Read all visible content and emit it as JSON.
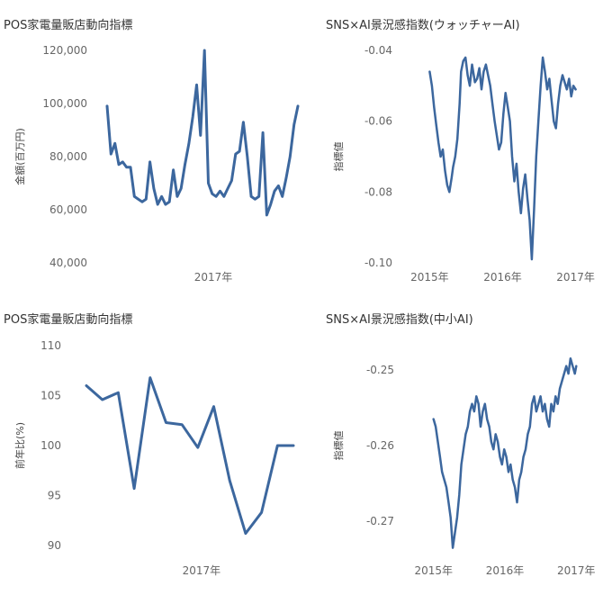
{
  "chart_data": [
    {
      "type": "line",
      "title": "POS家電量販店動向指標",
      "ylabel": "金額(百万円)",
      "xlabel": "",
      "ylim": [
        40000,
        120000
      ],
      "yticks": [
        "120,000",
        "100,000",
        "80,000",
        "60,000",
        "40,000"
      ],
      "ytick_values": [
        120000,
        100000,
        80000,
        60000,
        40000
      ],
      "xticks": [
        "2017年"
      ],
      "grid": false,
      "series": [
        {
          "values": [
            99000,
            81000,
            85000,
            77000,
            78000,
            76000,
            76000,
            65000,
            64000,
            63000,
            64000,
            78000,
            68000,
            62000,
            65000,
            62000,
            63000,
            75000,
            65000,
            68000,
            77000,
            85000,
            95000,
            107000,
            88000,
            120000,
            70000,
            66000,
            65000,
            67000,
            65000,
            68000,
            71000,
            81000,
            82000,
            93000,
            80000,
            65000,
            64000,
            65000,
            89000,
            58000,
            62000,
            67000,
            69000,
            65000,
            72000,
            80000,
            92000,
            99000
          ]
        }
      ]
    },
    {
      "type": "line",
      "title": "SNS×AI景況感指数(ウォッチャーAI)",
      "ylabel": "指標値",
      "xlabel": "",
      "ylim": [
        -0.1,
        -0.04
      ],
      "yticks": [
        "-0.04",
        "-0.06",
        "-0.08",
        "-0.10"
      ],
      "ytick_values": [
        -0.04,
        -0.06,
        -0.08,
        -0.1
      ],
      "xticks": [
        "2015年",
        "2016年",
        "2017年"
      ],
      "grid": false,
      "series": [
        {
          "x": [
            0,
            0.03,
            0.06,
            0.09,
            0.12,
            0.15,
            0.18,
            0.21,
            0.24,
            0.27,
            0.3,
            0.32,
            0.35,
            0.38,
            0.41,
            0.43,
            0.46,
            0.49,
            0.52,
            0.55,
            0.58,
            0.62,
            0.65,
            0.68,
            0.71,
            0.74,
            0.77,
            0.8,
            0.83,
            0.86,
            0.89,
            0.92,
            0.95,
            0.98,
            1.01,
            1.04,
            1.07,
            1.1,
            1.13,
            1.16,
            1.19,
            1.22,
            1.25,
            1.28,
            1.31,
            1.34,
            1.37,
            1.4,
            1.43,
            1.46,
            1.49,
            1.52,
            1.55,
            1.58,
            1.61,
            1.64,
            1.67,
            1.7,
            1.73,
            1.76,
            1.79,
            1.82,
            1.85,
            1.88,
            1.91,
            1.94,
            1.97,
            2.0
          ],
          "values": [
            -0.046,
            -0.05,
            -0.056,
            -0.061,
            -0.066,
            -0.07,
            -0.068,
            -0.074,
            -0.078,
            -0.08,
            -0.076,
            -0.073,
            -0.07,
            -0.065,
            -0.055,
            -0.046,
            -0.043,
            -0.042,
            -0.047,
            -0.05,
            -0.044,
            -0.049,
            -0.048,
            -0.045,
            -0.051,
            -0.046,
            -0.044,
            -0.047,
            -0.05,
            -0.055,
            -0.06,
            -0.064,
            -0.068,
            -0.066,
            -0.058,
            -0.052,
            -0.056,
            -0.06,
            -0.07,
            -0.077,
            -0.072,
            -0.08,
            -0.086,
            -0.079,
            -0.075,
            -0.082,
            -0.088,
            -0.099,
            -0.085,
            -0.07,
            -0.06,
            -0.05,
            -0.042,
            -0.046,
            -0.051,
            -0.048,
            -0.054,
            -0.06,
            -0.062,
            -0.055,
            -0.05,
            -0.047,
            -0.049,
            -0.051,
            -0.048,
            -0.053,
            -0.05,
            -0.051
          ]
        }
      ]
    },
    {
      "type": "line",
      "title": "POS家電量販店動向指標",
      "ylabel": "前年比(%)",
      "xlabel": "",
      "ylim": [
        89,
        111
      ],
      "yticks": [
        "110",
        "105",
        "100",
        "95",
        "90"
      ],
      "ytick_values": [
        110,
        105,
        100,
        95,
        90
      ],
      "xticks": [
        "2017年"
      ],
      "grid": false,
      "series": [
        {
          "values": [
            106,
            104.6,
            105.3,
            95.7,
            106.8,
            102.3,
            102.1,
            99.8,
            103.9,
            96.5,
            91.2,
            93.3,
            100,
            100
          ]
        }
      ]
    },
    {
      "type": "line",
      "title": "SNS×AI景況感指数(中小AI)",
      "ylabel": "指標値",
      "xlabel": "",
      "ylim": [
        -0.2745,
        -0.2455
      ],
      "yticks": [
        "-0.25",
        "-0.26",
        "-0.27"
      ],
      "ytick_values": [
        -0.25,
        -0.26,
        -0.27
      ],
      "xticks": [
        "2015年",
        "2016年",
        "2017年"
      ],
      "grid": false,
      "series": [
        {
          "x": [
            0,
            0.03,
            0.06,
            0.09,
            0.12,
            0.15,
            0.18,
            0.21,
            0.24,
            0.27,
            0.3,
            0.33,
            0.36,
            0.39,
            0.42,
            0.45,
            0.48,
            0.51,
            0.54,
            0.57,
            0.6,
            0.63,
            0.66,
            0.69,
            0.72,
            0.75,
            0.78,
            0.81,
            0.84,
            0.87,
            0.9,
            0.93,
            0.96,
            0.99,
            1.02,
            1.05,
            1.08,
            1.11,
            1.14,
            1.17,
            1.2,
            1.23,
            1.26,
            1.29,
            1.32,
            1.35,
            1.38,
            1.41,
            1.44,
            1.47,
            1.5,
            1.53,
            1.56,
            1.59,
            1.62,
            1.65,
            1.68,
            1.71,
            1.74,
            1.77,
            1.8,
            1.83,
            1.86,
            1.89,
            1.92,
            1.95,
            1.98,
            2.0
          ],
          "values": [
            -0.2565,
            -0.2575,
            -0.2595,
            -0.2615,
            -0.2635,
            -0.2645,
            -0.2655,
            -0.2675,
            -0.2695,
            -0.2735,
            -0.2715,
            -0.2695,
            -0.2665,
            -0.2625,
            -0.2605,
            -0.2585,
            -0.2575,
            -0.2555,
            -0.2545,
            -0.2555,
            -0.2535,
            -0.2545,
            -0.2575,
            -0.2555,
            -0.2545,
            -0.2565,
            -0.2575,
            -0.2595,
            -0.2605,
            -0.2585,
            -0.2595,
            -0.2615,
            -0.2625,
            -0.2605,
            -0.2615,
            -0.2635,
            -0.2625,
            -0.2645,
            -0.2655,
            -0.2675,
            -0.2645,
            -0.2635,
            -0.2615,
            -0.2605,
            -0.2585,
            -0.2575,
            -0.2545,
            -0.2535,
            -0.2555,
            -0.2545,
            -0.2535,
            -0.2555,
            -0.2545,
            -0.2565,
            -0.2575,
            -0.2545,
            -0.2555,
            -0.2535,
            -0.2545,
            -0.2525,
            -0.2515,
            -0.2505,
            -0.2495,
            -0.2505,
            -0.2485,
            -0.2495,
            -0.2505,
            -0.2495
          ]
        }
      ]
    }
  ]
}
